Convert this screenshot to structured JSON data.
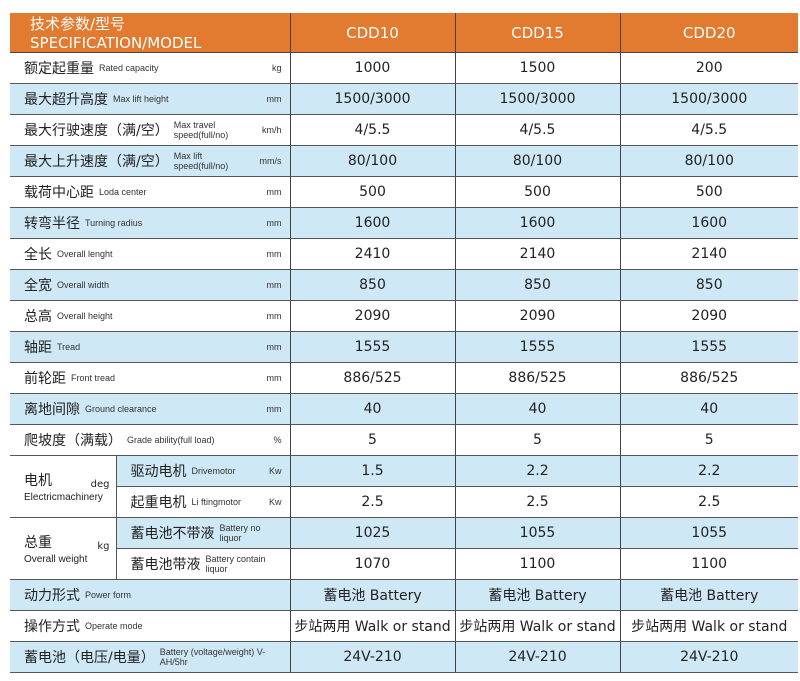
{
  "header": {
    "spec": "技术参数/型号 SPECIFICATION/MODEL",
    "models": [
      "CDD10",
      "CDD15",
      "CDD20"
    ]
  },
  "colors": {
    "header": "#e27a30",
    "band": "#cfe8f5"
  },
  "rows": [
    {
      "cn": "额定起重量",
      "en": "Rated capacity",
      "unit": "kg",
      "values": [
        "1000",
        "1500",
        "200"
      ]
    },
    {
      "cn": "最大超升高度",
      "en": "Max lift height",
      "unit": "mm",
      "values": [
        "1500/3000",
        "1500/3000",
        "1500/3000"
      ]
    },
    {
      "cn": "最大行驶速度（满/空）",
      "en": "Max travel speed(full/no)",
      "unit": "km/h",
      "values": [
        "4/5.5",
        "4/5.5",
        "4/5.5"
      ]
    },
    {
      "cn": "最大上升速度（满/空）",
      "en": "Max lift speed(full/no)",
      "unit": "mm/s",
      "values": [
        "80/100",
        "80/100",
        "80/100"
      ]
    },
    {
      "cn": "载荷中心距",
      "en": "Loda center",
      "unit": "mm",
      "values": [
        "500",
        "500",
        "500"
      ]
    },
    {
      "cn": "转弯半径",
      "en": "Turning radius",
      "unit": "mm",
      "values": [
        "1600",
        "1600",
        "1600"
      ]
    },
    {
      "cn": "全长",
      "en": "Overall lenght",
      "unit": "mm",
      "values": [
        "2410",
        "2140",
        "2140"
      ]
    },
    {
      "cn": "全宽",
      "en": "Overall width",
      "unit": "mm",
      "values": [
        "850",
        "850",
        "850"
      ]
    },
    {
      "cn": "总高",
      "en": "Overall height",
      "unit": "mm",
      "values": [
        "2090",
        "2090",
        "2090"
      ]
    },
    {
      "cn": "轴距",
      "en": "Tread",
      "unit": "mm",
      "values": [
        "1555",
        "1555",
        "1555"
      ]
    },
    {
      "cn": "前轮距",
      "en": "Front tread",
      "unit": "mm",
      "values": [
        "886/525",
        "886/525",
        "886/525"
      ]
    },
    {
      "cn": "离地间隙",
      "en": "Ground clearance",
      "unit": "mm",
      "values": [
        "40",
        "40",
        "40"
      ]
    },
    {
      "cn": "爬坡度（满载）",
      "en": "Grade ability(full load)",
      "unit": "%",
      "values": [
        "5",
        "5",
        "5"
      ]
    }
  ],
  "motor": {
    "cn": "电机",
    "unit": "deg",
    "en": "Electricmachinery",
    "subs": [
      {
        "cn": "驱动电机",
        "en": "Drivemotor",
        "unit": "Kw",
        "values": [
          "1.5",
          "2.2",
          "2.2"
        ]
      },
      {
        "cn": "起重电机",
        "en": "Li ftingmotor",
        "unit": "Kw",
        "values": [
          "2.5",
          "2.5",
          "2.5"
        ]
      }
    ]
  },
  "weight": {
    "cn": "总重",
    "unit": "kg",
    "en": "Overall  weight",
    "subs": [
      {
        "cn": "蓄电池不带液",
        "en": "Battery no liquor",
        "values": [
          "1025",
          "1055",
          "1055"
        ]
      },
      {
        "cn": "蓄电池带液",
        "en": "Battery contain liquor",
        "values": [
          "1070",
          "1100",
          "1100"
        ]
      }
    ]
  },
  "tail": [
    {
      "cn": "动力形式",
      "en": "Power  form",
      "values": [
        "蓄电池 Battery",
        "蓄电池 Battery",
        "蓄电池 Battery"
      ]
    },
    {
      "cn": "操作方式",
      "en": "Operate mode",
      "values": [
        "步站两用 Walk or stand",
        "步站两用 Walk or stand",
        "步站两用 Walk or stand"
      ]
    },
    {
      "cn": "蓄电池（电压/电量）",
      "en": "Battery (voltage/weight)  V-AH/5hr",
      "values": [
        "24V-210",
        "24V-210",
        "24V-210"
      ]
    }
  ]
}
